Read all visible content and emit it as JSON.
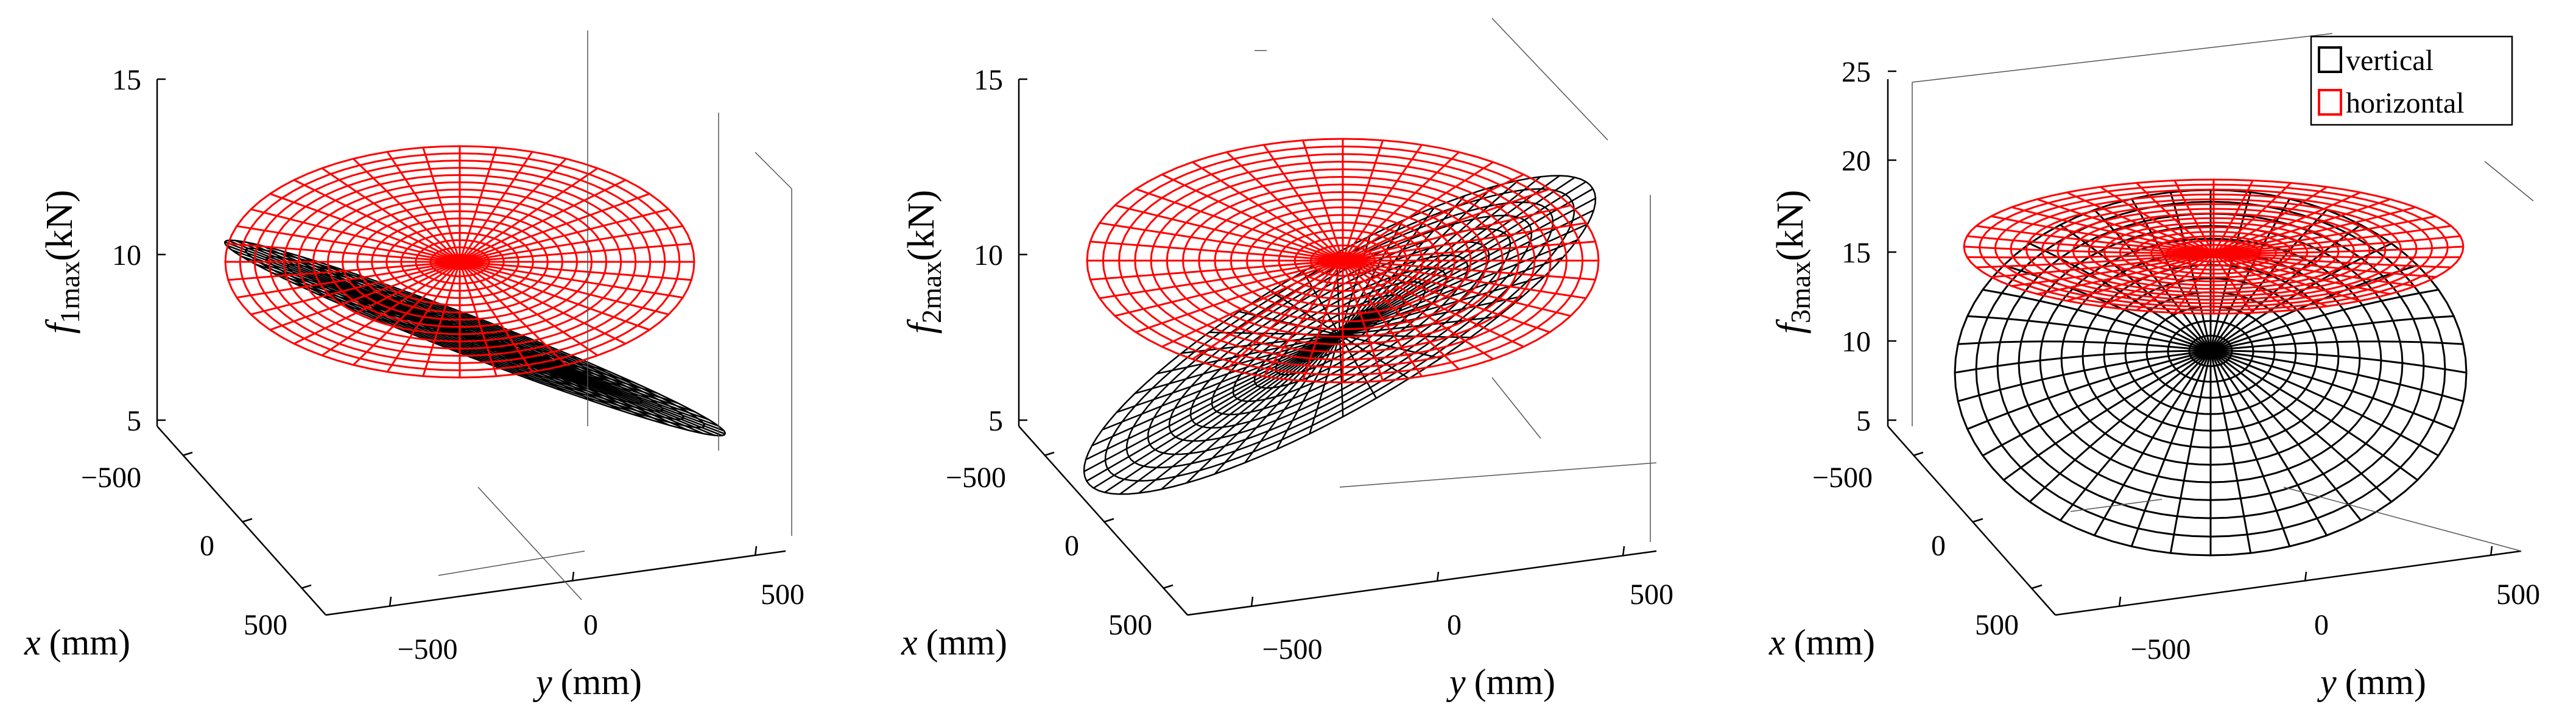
{
  "chart_data": [
    {
      "type": "surface3d",
      "zlabel_var": "f",
      "zlabel_sub": "1max",
      "zlabel_unit": "(kN)",
      "xlabel_var": "x",
      "xlabel_unit": "(mm)",
      "ylabel_var": "y",
      "ylabel_unit": "(mm)",
      "zticks": [
        "15",
        "10",
        "5"
      ],
      "xticks": [
        "−500",
        "0",
        "500"
      ],
      "yticks": [
        "−500",
        "0",
        "500"
      ],
      "zlim": [
        5,
        15
      ],
      "xlim": [
        -500,
        500
      ],
      "ylim": [
        -500,
        500
      ],
      "grid": false,
      "series": [
        {
          "name": "vertical",
          "color": "#000000",
          "shape": "tilted disc, seen nearly edge-on",
          "z_min": 5.5,
          "z_max": 10.5
        },
        {
          "name": "horizontal",
          "color": "#ff0000",
          "shape": "horizontal disc",
          "z_center": 10
        }
      ]
    },
    {
      "type": "surface3d",
      "zlabel_var": "f",
      "zlabel_sub": "2max",
      "zlabel_unit": "(kN)",
      "xlabel_var": "x",
      "xlabel_unit": "(mm)",
      "ylabel_var": "y",
      "ylabel_unit": "(mm)",
      "zticks": [
        "15",
        "10",
        "5"
      ],
      "xticks": [
        "−500",
        "0",
        "500"
      ],
      "yticks": [
        "−500",
        "0",
        "500"
      ],
      "zlim": [
        5,
        15
      ],
      "xlim": [
        -500,
        500
      ],
      "ylim": [
        -500,
        500
      ],
      "grid": false,
      "series": [
        {
          "name": "vertical",
          "color": "#000000",
          "shape": "tilted disc, rising to the right",
          "z_min": 4.5,
          "z_max": 12.5
        },
        {
          "name": "horizontal",
          "color": "#ff0000",
          "shape": "horizontal disc",
          "z_center": 10
        }
      ]
    },
    {
      "type": "surface3d",
      "zlabel_var": "f",
      "zlabel_sub": "3max",
      "zlabel_unit": "(kN)",
      "xlabel_var": "x",
      "xlabel_unit": "(mm)",
      "ylabel_var": "y",
      "ylabel_unit": "(mm)",
      "zticks": [
        "25",
        "20",
        "15",
        "10",
        "5"
      ],
      "xticks": [
        "−500",
        "0",
        "500"
      ],
      "yticks": [
        "−500",
        "0",
        "500"
      ],
      "zlim": [
        5,
        25
      ],
      "xlim": [
        -500,
        500
      ],
      "ylim": [
        -500,
        500
      ],
      "grid": false,
      "legend": {
        "position": "top-right",
        "entries": [
          "vertical",
          "horizontal"
        ]
      },
      "series": [
        {
          "name": "vertical",
          "color": "#000000",
          "shape": "bowl below the red disc",
          "z_center": 8.5
        },
        {
          "name": "horizontal",
          "color": "#ff0000",
          "shape": "near-flat dome",
          "z_center": 14
        }
      ]
    }
  ]
}
